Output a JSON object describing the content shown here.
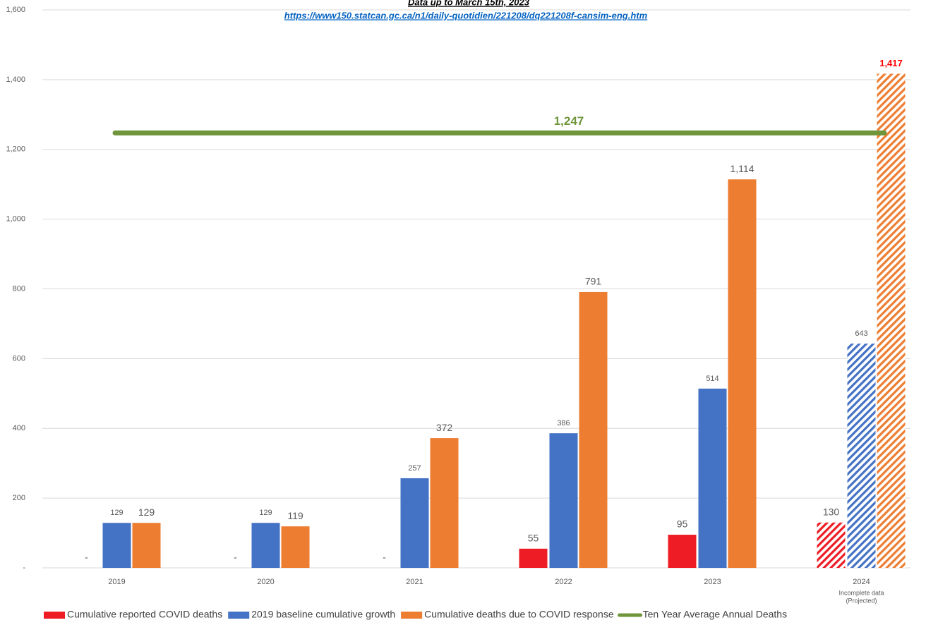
{
  "chart_data": {
    "type": "bar",
    "header": "Data up to March 15th, 2023",
    "source_url": "https://www150.statcan.gc.ca/n1/daily-quotidien/221208/dq221208f-cansim-eng.htm",
    "categories": [
      "2019",
      "2020",
      "2021",
      "2022",
      "2023",
      "2024"
    ],
    "category_notes": [
      null,
      null,
      null,
      null,
      null,
      [
        "Incomplete data",
        "(Projected)"
      ]
    ],
    "projected": [
      false,
      false,
      false,
      false,
      false,
      true
    ],
    "series": [
      {
        "name": "Cumulative reported COVID deaths",
        "color": "#ee1c25",
        "values": [
          0,
          0,
          0,
          55,
          95,
          130
        ],
        "value_labels": [
          "-",
          "-",
          "-",
          "55",
          "95",
          "130"
        ]
      },
      {
        "name": "2019 baseline cumulative growth",
        "color": "#4472c4",
        "values": [
          129,
          129,
          257,
          386,
          514,
          643
        ]
      },
      {
        "name": "Cumulative deaths due to COVID response",
        "color": "#ed7d31",
        "values": [
          129,
          119,
          372,
          791,
          1114,
          1417
        ],
        "value_labels": [
          "129",
          "119",
          "372",
          "791",
          "1,114",
          "1,417"
        ]
      }
    ],
    "reference_line": {
      "name": "Ten Year Average Annual Deaths",
      "color": "#70963c",
      "value": 1247,
      "value_label": "1,247"
    },
    "ylim": [
      0,
      1600
    ],
    "yticks": [
      {
        "value": 0,
        "label": "-"
      },
      200,
      400,
      600,
      800,
      {
        "value": 1000,
        "label": "1,000"
      },
      {
        "value": 1200,
        "label": "1,200"
      },
      {
        "value": 1400,
        "label": "1,400"
      },
      {
        "value": 1600,
        "label": "1,600"
      }
    ],
    "grid": true
  }
}
